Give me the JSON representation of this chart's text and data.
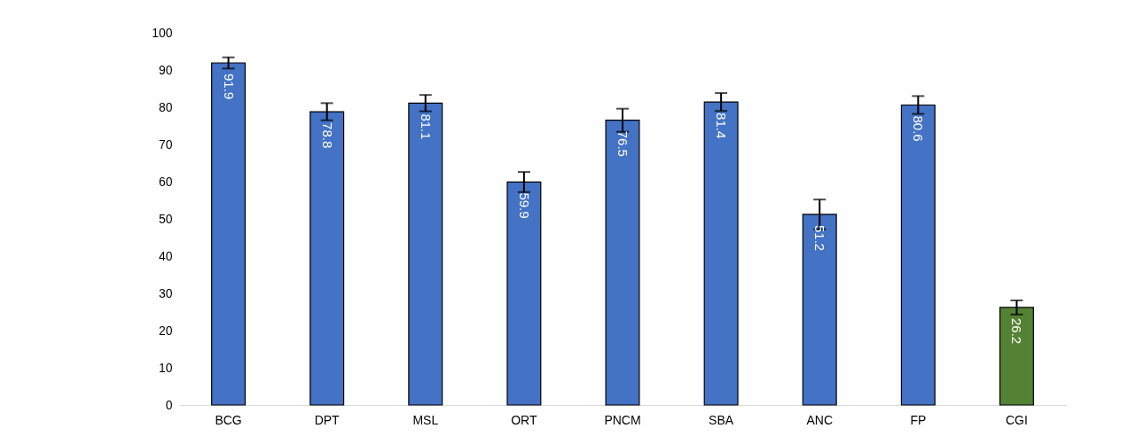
{
  "chart_data": {
    "type": "bar",
    "categories": [
      "BCG",
      "DPT",
      "MSL",
      "ORT",
      "PNCM",
      "SBA",
      "ANC",
      "FP",
      "CGI"
    ],
    "values": [
      91.9,
      78.8,
      81.1,
      59.9,
      76.5,
      81.4,
      51.2,
      80.6,
      26.2
    ],
    "colors": [
      "#4472c4",
      "#4472c4",
      "#4472c4",
      "#4472c4",
      "#4472c4",
      "#4472c4",
      "#4472c4",
      "#4472c4",
      "#548235"
    ],
    "errors": [
      1.5,
      2.3,
      2.2,
      2.7,
      3.1,
      2.4,
      4.0,
      2.4,
      1.9
    ],
    "ylim": [
      0,
      100
    ],
    "yticks": [
      0,
      10,
      20,
      30,
      40,
      50,
      60,
      70,
      80,
      90,
      100
    ],
    "grid": false,
    "data_labels": true
  }
}
